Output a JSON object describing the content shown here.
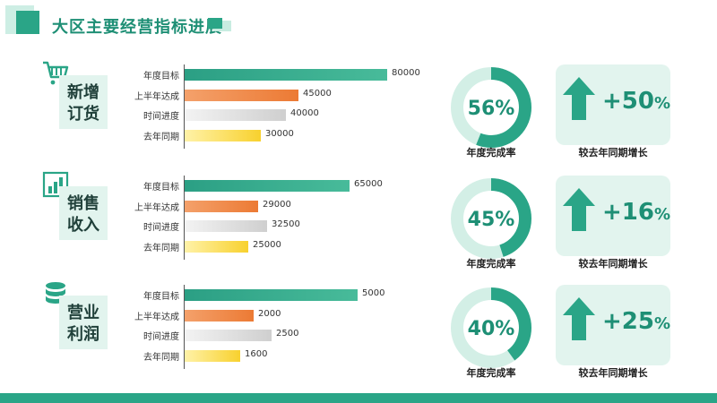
{
  "page": {
    "title": "大区主要经营指标进展"
  },
  "colors": {
    "primary": "#2aa587",
    "light": "#e2f4ee",
    "orange": "#ec7a34",
    "yellow": "#f8d12e",
    "gray": "#cfcfcf"
  },
  "chart_data": [
    {
      "type": "bar",
      "title": "新增订货",
      "icon": "cart-icon",
      "categories": [
        "年度目标",
        "上半年达成",
        "时间进度",
        "去年同期"
      ],
      "values": [
        80000,
        45000,
        40000,
        30000
      ],
      "xlim": [
        0,
        82000
      ],
      "completion": {
        "value": 56,
        "label": "56%",
        "caption": "年度完成率"
      },
      "growth": {
        "number": "+50",
        "unit": "%",
        "caption": "较去年同期增长"
      }
    },
    {
      "type": "bar",
      "title": "销售收入",
      "icon": "bar-chart-icon",
      "categories": [
        "年度目标",
        "上半年达成",
        "时间进度",
        "去年同期"
      ],
      "values": [
        65000,
        29000,
        32500,
        25000
      ],
      "xlim": [
        0,
        82000
      ],
      "completion": {
        "value": 45,
        "label": "45%",
        "caption": "年度完成率"
      },
      "growth": {
        "number": "+16",
        "unit": "%",
        "caption": "较去年同期增长"
      }
    },
    {
      "type": "bar",
      "title": "营业利润",
      "icon": "database-icon",
      "categories": [
        "年度目标",
        "上半年达成",
        "时间进度",
        "去年同期"
      ],
      "values": [
        5000,
        2000,
        2500,
        1600
      ],
      "xlim": [
        0,
        6000
      ],
      "completion": {
        "value": 40,
        "label": "40%",
        "caption": "年度完成率"
      },
      "growth": {
        "number": "+25",
        "unit": "%",
        "caption": "较去年同期增长"
      }
    }
  ]
}
